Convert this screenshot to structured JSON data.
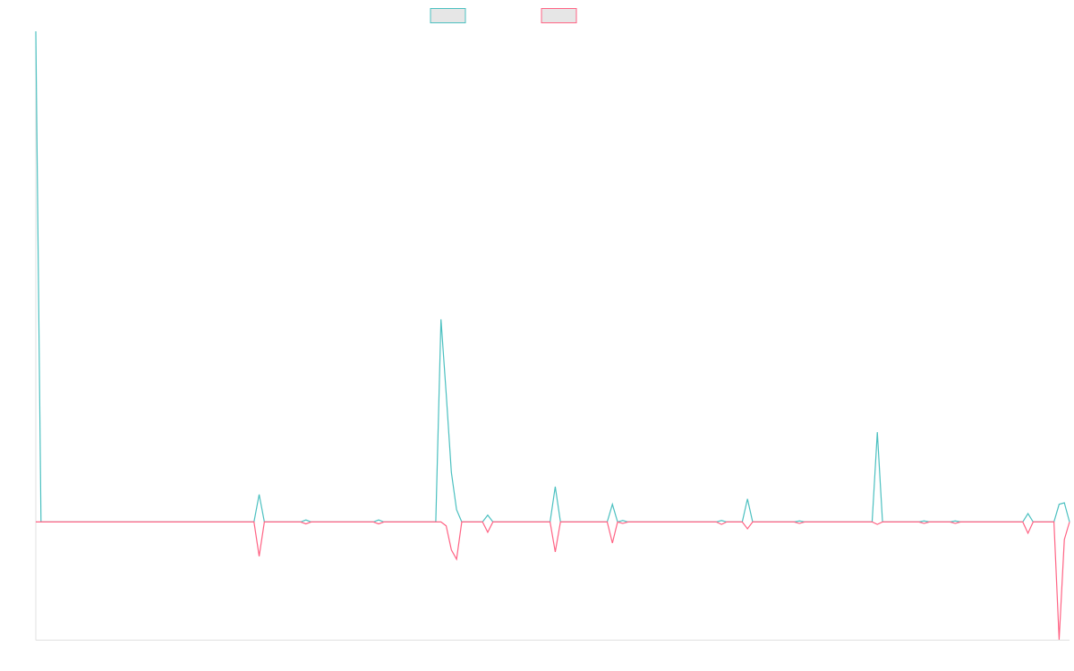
{
  "chart_data": {
    "type": "line",
    "x": [
      0,
      1,
      42,
      43,
      44,
      51,
      52,
      53,
      65,
      66,
      67,
      77,
      78,
      79,
      80,
      81,
      82,
      86,
      87,
      88,
      99,
      100,
      101,
      110,
      111,
      112,
      113,
      114,
      131,
      132,
      133,
      136,
      137,
      138,
      146,
      147,
      148,
      161,
      162,
      163,
      170,
      171,
      172,
      176,
      177,
      178,
      190,
      191,
      192,
      196,
      197,
      198,
      199
    ],
    "xlim": [
      0,
      199
    ],
    "ylim": [
      -24,
      100
    ],
    "legend": "top",
    "series": [
      {
        "color": "#4bc0c0",
        "values": [
          100,
          0,
          0,
          5.6,
          0,
          0,
          0.4,
          0,
          0,
          0.4,
          0,
          0,
          41.3,
          26.2,
          10.1,
          2.5,
          0,
          0,
          1.4,
          0,
          0,
          7.2,
          0,
          0,
          3.6,
          0,
          0.3,
          0,
          0,
          0.3,
          0,
          0,
          4.7,
          0,
          0,
          0.2,
          0,
          0,
          18.3,
          0,
          0,
          0.2,
          0,
          0,
          0.2,
          0,
          0,
          1.7,
          0,
          0,
          3.6,
          3.9,
          0
        ]
      },
      {
        "color": "#ff6384",
        "values": [
          0,
          0,
          0,
          -7,
          0,
          0,
          -0.4,
          0,
          0,
          -0.4,
          0,
          0,
          0,
          -0.8,
          -5.7,
          -7.6,
          0,
          0,
          -2.1,
          0,
          0,
          -6.1,
          0,
          0,
          -4.3,
          0,
          -0.3,
          0,
          0,
          -0.5,
          0,
          0,
          -1.4,
          0,
          0,
          -0.3,
          0,
          0,
          -0.5,
          0,
          0,
          -0.3,
          0,
          0,
          -0.3,
          0,
          0,
          -2.3,
          0,
          0,
          -24,
          -3.6,
          0
        ]
      }
    ]
  }
}
